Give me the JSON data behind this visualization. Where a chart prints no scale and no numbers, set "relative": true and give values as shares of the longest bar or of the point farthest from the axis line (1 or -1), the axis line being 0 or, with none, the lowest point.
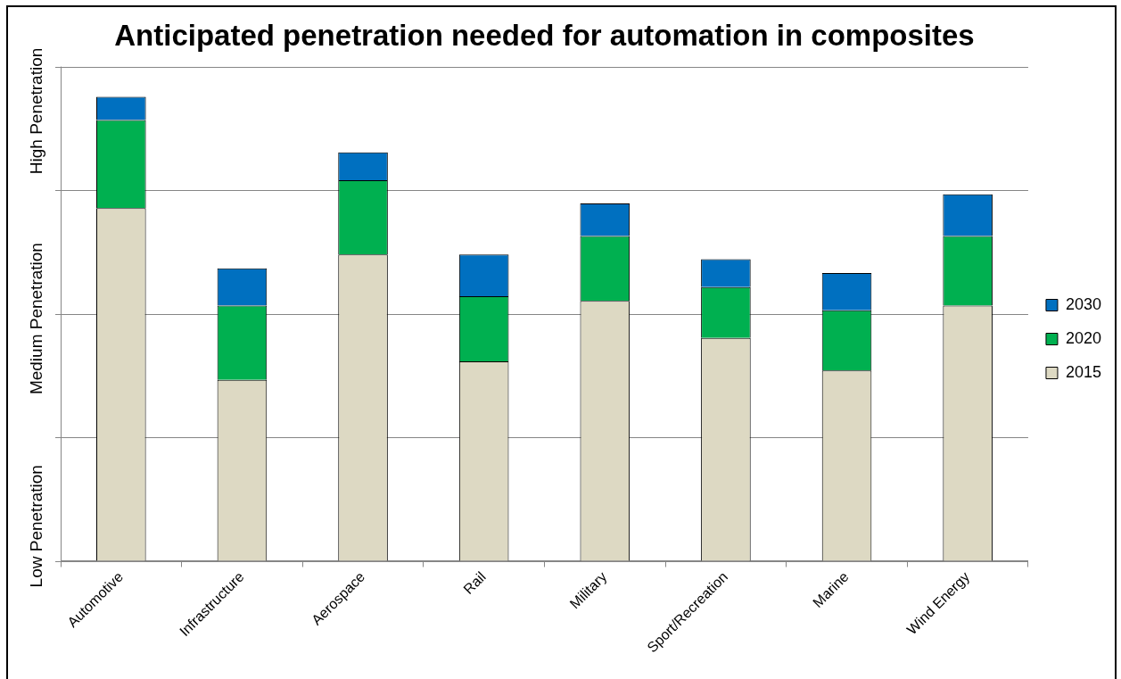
{
  "chart_data": {
    "type": "bar",
    "title": "Anticipated penetration needed for automation in composites",
    "categories": [
      "Automotive",
      "Infrastructure",
      "Aerospace",
      "Rail",
      "Military",
      "Sport/Recreation",
      "Marine",
      "Wind Energy"
    ],
    "series": [
      {
        "name": "2015",
        "color": "#ddd9c3",
        "values": [
          0.76,
          0.39,
          0.66,
          0.43,
          0.56,
          0.48,
          0.41,
          0.55
        ]
      },
      {
        "name": "2020",
        "color": "#00b050",
        "values": [
          0.19,
          0.16,
          0.16,
          0.14,
          0.14,
          0.11,
          0.13,
          0.15
        ]
      },
      {
        "name": "2030",
        "color": "#0070c0",
        "values": [
          0.05,
          0.08,
          0.06,
          0.09,
          0.07,
          0.06,
          0.08,
          0.09
        ]
      }
    ],
    "stacked": true,
    "relative": true,
    "grid": "y",
    "legend": "right",
    "tick_labels": "x",
    "annotations": [
      "Low Penetration",
      "Medium Penetration",
      "High Penetration"
    ]
  }
}
